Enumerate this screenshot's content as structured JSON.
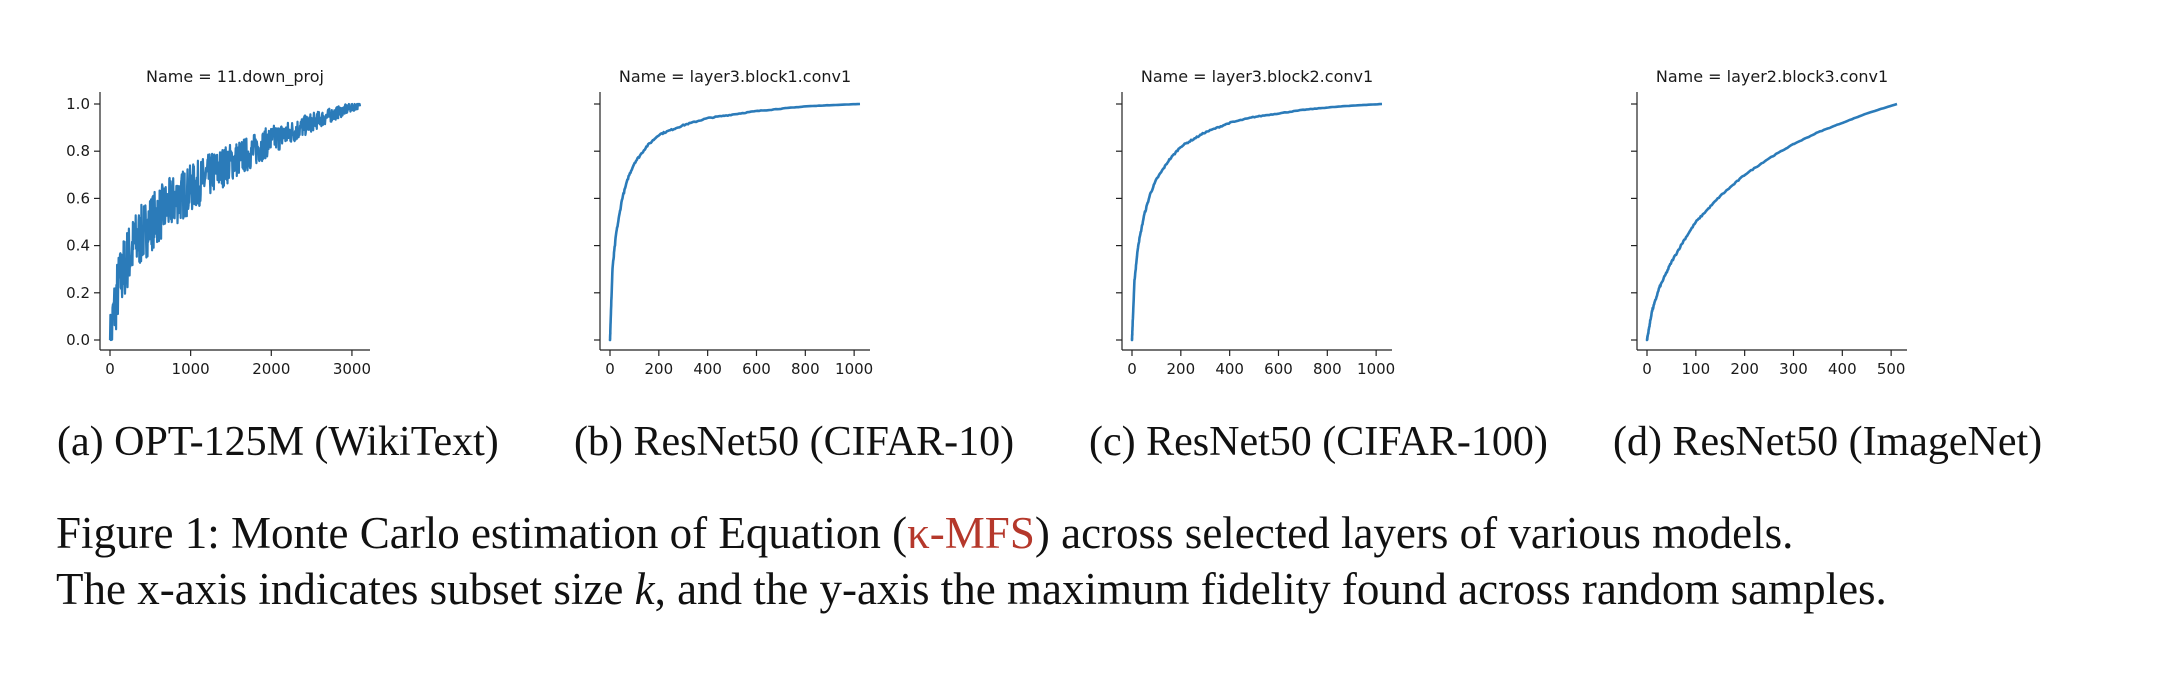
{
  "figure": {
    "colors": {
      "line": "#2b7bb9",
      "axis": "#222222",
      "ref_link": "#b5382b"
    },
    "panels": [
      {
        "id": "a",
        "caption": "(a) OPT-125M (WikiText)"
      },
      {
        "id": "b",
        "caption": "(b) ResNet50 (CIFAR-10)"
      },
      {
        "id": "c",
        "caption": "(c) ResNet50 (CIFAR-100)"
      },
      {
        "id": "d",
        "caption": "(d) ResNet50 (ImageNet)"
      }
    ],
    "caption": {
      "label": "Figure 1:",
      "line1_pre": "Monte Carlo estimation of Equation (",
      "ref": "κ-MFS",
      "line1_post": ") across selected layers of various models.",
      "line2_pre": "The x-axis indicates subset size ",
      "line2_var": "k",
      "line2_post": ", and the y-axis the maximum fidelity found across random samples."
    }
  },
  "chart_data": [
    {
      "type": "line",
      "title": "Name = 11.down_proj",
      "xlim": [
        0,
        3100
      ],
      "ylim": [
        0.0,
        1.0
      ],
      "xticks": [
        0,
        1000,
        2000,
        3000
      ],
      "yticks": [
        0.0,
        0.2,
        0.4,
        0.6,
        0.8,
        1.0
      ],
      "show_y_tick_labels": true,
      "noisy": true,
      "series": [
        {
          "x": [
            0,
            50,
            100,
            200,
            300,
            500,
            750,
            1000,
            1250,
            1500,
            1750,
            2000,
            2250,
            2500,
            2750,
            3000,
            3100
          ],
          "y": [
            0.0,
            0.15,
            0.25,
            0.36,
            0.43,
            0.52,
            0.6,
            0.66,
            0.72,
            0.77,
            0.81,
            0.86,
            0.89,
            0.93,
            0.96,
            0.99,
            1.0
          ]
        }
      ]
    },
    {
      "type": "line",
      "title": "Name = layer3.block1.conv1",
      "xlim": [
        0,
        1024
      ],
      "ylim": [
        0.0,
        1.0
      ],
      "xticks": [
        0,
        200,
        400,
        600,
        800,
        1000
      ],
      "yticks": [
        0.0,
        0.2,
        0.4,
        0.6,
        0.8,
        1.0
      ],
      "show_y_tick_labels": false,
      "noisy": false,
      "series": [
        {
          "x": [
            0,
            10,
            25,
            50,
            75,
            100,
            150,
            200,
            300,
            400,
            500,
            600,
            700,
            800,
            900,
            1024
          ],
          "y": [
            0.0,
            0.3,
            0.45,
            0.6,
            0.69,
            0.75,
            0.82,
            0.87,
            0.91,
            0.94,
            0.955,
            0.97,
            0.98,
            0.99,
            0.995,
            1.0
          ]
        }
      ]
    },
    {
      "type": "line",
      "title": "Name = layer3.block2.conv1",
      "xlim": [
        0,
        1024
      ],
      "ylim": [
        0.0,
        1.0
      ],
      "xticks": [
        0,
        200,
        400,
        600,
        800,
        1000
      ],
      "yticks": [
        0.0,
        0.2,
        0.4,
        0.6,
        0.8,
        1.0
      ],
      "show_y_tick_labels": false,
      "noisy": false,
      "series": [
        {
          "x": [
            0,
            10,
            25,
            50,
            75,
            100,
            150,
            200,
            300,
            400,
            500,
            600,
            700,
            800,
            900,
            1024
          ],
          "y": [
            0.0,
            0.25,
            0.4,
            0.53,
            0.62,
            0.68,
            0.76,
            0.82,
            0.88,
            0.92,
            0.945,
            0.96,
            0.975,
            0.985,
            0.993,
            1.0
          ]
        }
      ]
    },
    {
      "type": "line",
      "title": "Name = layer2.block3.conv1",
      "xlim": [
        0,
        512
      ],
      "ylim": [
        0.0,
        1.0
      ],
      "xticks": [
        0,
        100,
        200,
        300,
        400,
        500
      ],
      "yticks": [
        0.0,
        0.2,
        0.4,
        0.6,
        0.8,
        1.0
      ],
      "show_y_tick_labels": false,
      "noisy": false,
      "series": [
        {
          "x": [
            0,
            10,
            25,
            50,
            75,
            100,
            150,
            200,
            250,
            300,
            350,
            400,
            450,
            512
          ],
          "y": [
            0.0,
            0.12,
            0.22,
            0.33,
            0.42,
            0.5,
            0.61,
            0.7,
            0.77,
            0.83,
            0.88,
            0.92,
            0.96,
            1.0
          ]
        }
      ]
    }
  ]
}
